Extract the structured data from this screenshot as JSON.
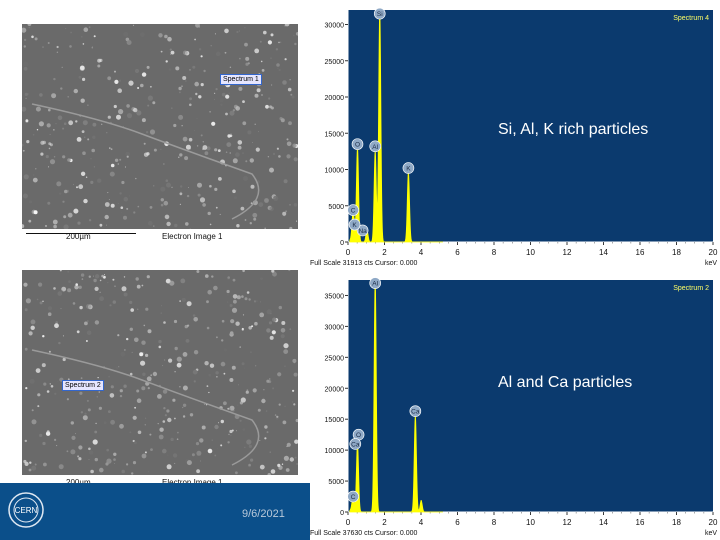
{
  "sem_images": [
    {
      "spectrum_label": "Spectrum 1",
      "scale_text": "200µm",
      "detector_text": "Electron Image 1"
    },
    {
      "spectrum_label": "Spectrum 2",
      "scale_text": "200µm",
      "detector_text": "Electron Image 1"
    }
  ],
  "captions": {
    "top": "Si, Al, K rich particles",
    "bottom": "Al and Ca particles"
  },
  "footer": {
    "date": "9/6/2021",
    "logo_text": "CERN"
  },
  "colors": {
    "plot_bg": "#0b3a6e",
    "spectrum": "#ffff00",
    "footer_bg": "#0b4f8a"
  },
  "chart_data": [
    {
      "type": "line",
      "title": "Spectrum 4",
      "xlabel": "keV",
      "x_ticks": [
        "0",
        "2",
        "4",
        "6",
        "8",
        "10",
        "12",
        "14",
        "16",
        "18",
        "20"
      ],
      "y_ticks": [
        "0",
        "5000",
        "10000",
        "15000",
        "20000",
        "25000",
        "30000"
      ],
      "xlim": [
        0,
        20
      ],
      "ylim": [
        0,
        32000
      ],
      "footer_text": "Full Scale 31913 cts Cursor: 0.000",
      "peaks": [
        {
          "element": "C",
          "x": 0.28,
          "y": 3600
        },
        {
          "element": "O",
          "x": 0.52,
          "y": 13000
        },
        {
          "element": "Na",
          "x": 1.04,
          "y": 1600
        },
        {
          "element": "Al",
          "x": 1.49,
          "y": 12500
        },
        {
          "element": "Si",
          "x": 1.74,
          "y": 31900
        },
        {
          "element": "K",
          "x": 3.31,
          "y": 9600
        }
      ],
      "peak_labels": [
        {
          "text": "Si",
          "x": 1.74,
          "y": 31500
        },
        {
          "text": "O",
          "x": 0.52,
          "y": 13500
        },
        {
          "text": "Al",
          "x": 1.49,
          "y": 13200
        },
        {
          "text": "K",
          "x": 3.31,
          "y": 10200
        },
        {
          "text": "C",
          "x": 0.28,
          "y": 4400
        },
        {
          "text": "Na",
          "x": 0.8,
          "y": 1600
        },
        {
          "text": "K",
          "x": 0.36,
          "y": 2400
        }
      ]
    },
    {
      "type": "line",
      "title": "Spectrum 2",
      "xlabel": "keV",
      "x_ticks": [
        "0",
        "2",
        "4",
        "6",
        "8",
        "10",
        "12",
        "14",
        "16",
        "18",
        "20"
      ],
      "y_ticks": [
        "0",
        "5000",
        "10000",
        "15000",
        "20000",
        "25000",
        "30000",
        "35000"
      ],
      "xlim": [
        0,
        20
      ],
      "ylim": [
        0,
        37500
      ],
      "footer_text": "Full Scale 37630 cts Cursor: 0.000",
      "peaks": [
        {
          "element": "C",
          "x": 0.28,
          "y": 2000
        },
        {
          "element": "O",
          "x": 0.52,
          "y": 11000
        },
        {
          "element": "Al",
          "x": 1.49,
          "y": 37500
        },
        {
          "element": "Ca",
          "x": 3.69,
          "y": 15500
        },
        {
          "element": "Ca2",
          "x": 4.01,
          "y": 1800
        }
      ],
      "peak_labels": [
        {
          "text": "Al",
          "x": 1.49,
          "y": 37000
        },
        {
          "text": "Ca",
          "x": 3.69,
          "y": 16300
        },
        {
          "text": "O",
          "x": 0.58,
          "y": 12500
        },
        {
          "text": "Ca",
          "x": 0.4,
          "y": 11000
        },
        {
          "text": "C",
          "x": 0.28,
          "y": 2500
        }
      ]
    }
  ]
}
